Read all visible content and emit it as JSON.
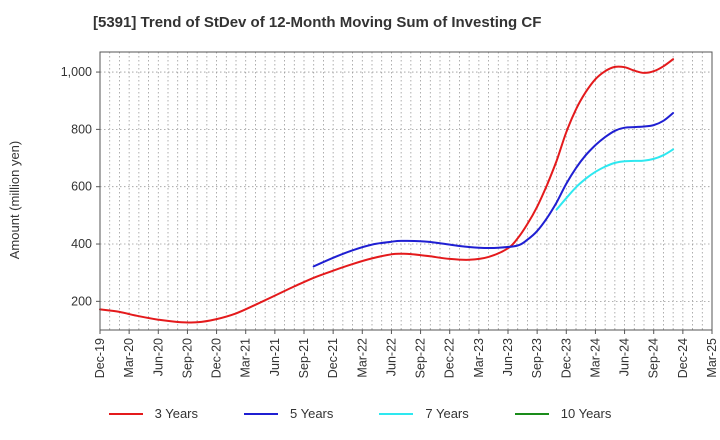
{
  "chart_data": {
    "type": "line",
    "title": "[5391]  Trend of StDev of 12-Month Moving Sum of Investing CF",
    "ylabel": "Amount (million yen)",
    "xlabel": "",
    "ylim": [
      100,
      1070
    ],
    "yticks": [
      200,
      400,
      600,
      800,
      1000
    ],
    "ytick_labels": [
      "200",
      "400",
      "600",
      "800",
      "1,000"
    ],
    "x_range": [
      "2019-12",
      "2025-03"
    ],
    "x_tick_labels": [
      "Dec-19",
      "Mar-20",
      "Jun-20",
      "Sep-20",
      "Dec-20",
      "Mar-21",
      "Jun-21",
      "Sep-21",
      "Dec-21",
      "Mar-22",
      "Jun-22",
      "Sep-22",
      "Dec-22",
      "Mar-23",
      "Jun-23",
      "Sep-23",
      "Dec-23",
      "Mar-24",
      "Jun-24",
      "Sep-24",
      "Dec-24",
      "Mar-25"
    ],
    "grid": true,
    "legend_position": "bottom",
    "series": [
      {
        "name": "3 Years",
        "color": "#e41a1c",
        "points": [
          [
            "2019-12",
            172
          ],
          [
            "2020-02",
            163
          ],
          [
            "2020-04",
            148
          ],
          [
            "2020-06",
            136
          ],
          [
            "2020-08",
            128
          ],
          [
            "2020-10",
            127
          ],
          [
            "2020-12",
            138
          ],
          [
            "2021-02",
            158
          ],
          [
            "2021-04",
            188
          ],
          [
            "2021-06",
            220
          ],
          [
            "2021-08",
            252
          ],
          [
            "2021-10",
            282
          ],
          [
            "2021-12",
            307
          ],
          [
            "2022-02",
            330
          ],
          [
            "2022-04",
            350
          ],
          [
            "2022-06",
            364
          ],
          [
            "2022-07",
            366
          ],
          [
            "2022-08",
            365
          ],
          [
            "2022-10",
            357
          ],
          [
            "2022-12",
            348
          ],
          [
            "2023-02",
            345
          ],
          [
            "2023-04",
            355
          ],
          [
            "2023-06",
            385
          ],
          [
            "2023-07",
            420
          ],
          [
            "2023-08",
            470
          ],
          [
            "2023-09",
            530
          ],
          [
            "2023-10",
            605
          ],
          [
            "2023-11",
            690
          ],
          [
            "2023-12",
            790
          ],
          [
            "2024-01",
            870
          ],
          [
            "2024-02",
            930
          ],
          [
            "2024-03",
            975
          ],
          [
            "2024-04",
            1003
          ],
          [
            "2024-05",
            1018
          ],
          [
            "2024-06",
            1017
          ],
          [
            "2024-07",
            1005
          ],
          [
            "2024-08",
            997
          ],
          [
            "2024-09",
            1003
          ],
          [
            "2024-10",
            1020
          ],
          [
            "2024-11",
            1045
          ]
        ]
      },
      {
        "name": "5 Years",
        "color": "#1f1fd2",
        "points": [
          [
            "2021-10",
            322
          ],
          [
            "2021-12",
            352
          ],
          [
            "2022-02",
            378
          ],
          [
            "2022-04",
            398
          ],
          [
            "2022-06",
            408
          ],
          [
            "2022-07",
            411
          ],
          [
            "2022-09",
            410
          ],
          [
            "2022-11",
            403
          ],
          [
            "2023-01",
            393
          ],
          [
            "2023-03",
            387
          ],
          [
            "2023-05",
            387
          ],
          [
            "2023-07",
            395
          ],
          [
            "2023-08",
            415
          ],
          [
            "2023-09",
            445
          ],
          [
            "2023-10",
            490
          ],
          [
            "2023-11",
            545
          ],
          [
            "2023-12",
            610
          ],
          [
            "2024-01",
            665
          ],
          [
            "2024-02",
            710
          ],
          [
            "2024-03",
            745
          ],
          [
            "2024-04",
            773
          ],
          [
            "2024-05",
            795
          ],
          [
            "2024-06",
            806
          ],
          [
            "2024-07",
            808
          ],
          [
            "2024-08",
            810
          ],
          [
            "2024-09",
            815
          ],
          [
            "2024-10",
            830
          ],
          [
            "2024-11",
            857
          ]
        ]
      },
      {
        "name": "7 Years",
        "color": "#2ee8f0",
        "points": [
          [
            "2023-11",
            520
          ],
          [
            "2023-12",
            560
          ],
          [
            "2024-01",
            598
          ],
          [
            "2024-02",
            628
          ],
          [
            "2024-03",
            652
          ],
          [
            "2024-04",
            670
          ],
          [
            "2024-05",
            683
          ],
          [
            "2024-06",
            689
          ],
          [
            "2024-07",
            690
          ],
          [
            "2024-08",
            691
          ],
          [
            "2024-09",
            697
          ],
          [
            "2024-10",
            710
          ],
          [
            "2024-11",
            730
          ]
        ]
      },
      {
        "name": "10 Years",
        "color": "#1a8c1a",
        "points": []
      }
    ]
  }
}
